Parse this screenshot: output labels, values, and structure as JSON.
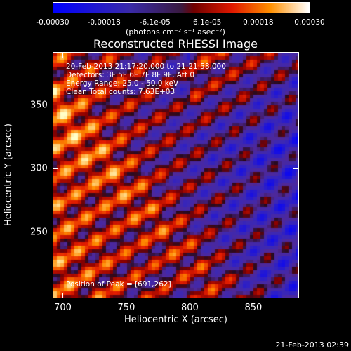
{
  "chart_data": {
    "type": "heatmap",
    "title": "Reconstructed RHESSI Image",
    "xlabel": "Heliocentric X (arcsec)",
    "ylabel": "Heliocentric Y (arcsec)",
    "xlim": [
      692,
      886
    ],
    "ylim": [
      198,
      392
    ],
    "x_ticks": [
      "700",
      "750",
      "800",
      "850"
    ],
    "x_tick_values": [
      700,
      750,
      800,
      850
    ],
    "y_ticks": [
      "250",
      "300",
      "350"
    ],
    "y_tick_values": [
      250,
      300,
      350
    ],
    "colorbar": {
      "range": [
        -0.0003,
        0.0003
      ],
      "tick_labels": [
        "-0.00030",
        "-0.00018",
        "-6.1e-05",
        "6.1e-05",
        "0.00018",
        "0.00030"
      ],
      "tick_values": [
        -0.0003,
        -0.00018,
        -6.1e-05,
        6.1e-05,
        0.00018,
        0.0003
      ],
      "units": "(photons cm⁻² s⁻¹ asec⁻²)"
    },
    "annotations": [
      "20-Feb-2013 21:17:20.000 to 21:21:58.000",
      "Detectors: 3F 5F 6F 7F 8F 9F, Att 0",
      "Energy Range: 25.0 - 50.0 keV",
      "Clean     Total counts: 7.63E+03"
    ],
    "peak_text": "Position of Peak = [691,262]",
    "peak": [
      691,
      262
    ]
  },
  "timestamp": "21-Feb-2013 02:39"
}
